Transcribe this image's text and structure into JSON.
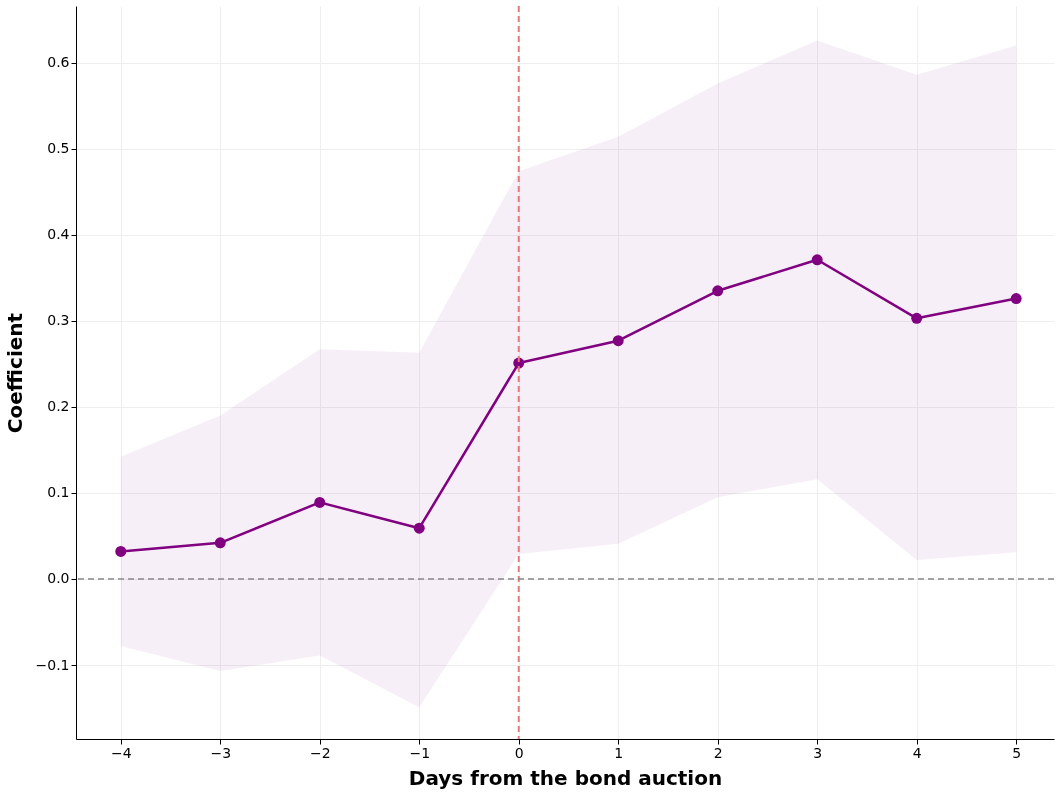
{
  "chart_data": {
    "type": "line",
    "xlabel": "Days from the bond auction",
    "ylabel": "Coefficient",
    "x": [
      -4,
      -3,
      -2,
      -1,
      0,
      1,
      2,
      3,
      4,
      5
    ],
    "series": [
      {
        "color": "#800080",
        "values": [
          0.032,
          0.042,
          0.089,
          0.059,
          0.251,
          0.277,
          0.335,
          0.371,
          0.303,
          0.326
        ],
        "lower": [
          -0.078,
          -0.107,
          -0.089,
          -0.149,
          0.029,
          0.041,
          0.095,
          0.116,
          0.022,
          0.031
        ],
        "upper": [
          0.142,
          0.19,
          0.267,
          0.263,
          0.474,
          0.514,
          0.576,
          0.626,
          0.586,
          0.62
        ]
      }
    ],
    "marker": "circle",
    "line_style": "solid",
    "grid": true,
    "xlim": [
      -4.45,
      5.38
    ],
    "ylim": [
      -0.186,
      0.666
    ],
    "xticks": [
      {
        "value": -4,
        "label": "−4"
      },
      {
        "value": -3,
        "label": "−3"
      },
      {
        "value": -2,
        "label": "−2"
      },
      {
        "value": -1,
        "label": "−1"
      },
      0,
      1,
      2,
      3,
      4,
      5
    ],
    "yticks": [
      {
        "value": -0.1,
        "label": "−0.1"
      },
      {
        "value": 0,
        "label": "0.0"
      },
      0.1,
      0.2,
      0.3,
      0.4,
      0.5,
      0.6
    ],
    "ref_lines": [
      {
        "axis": "x",
        "value": 0,
        "color": "#e8797a",
        "line_style": "dashed"
      },
      {
        "axis": "y",
        "value": 0,
        "color": "#888888",
        "line_style": "dashed"
      }
    ]
  }
}
